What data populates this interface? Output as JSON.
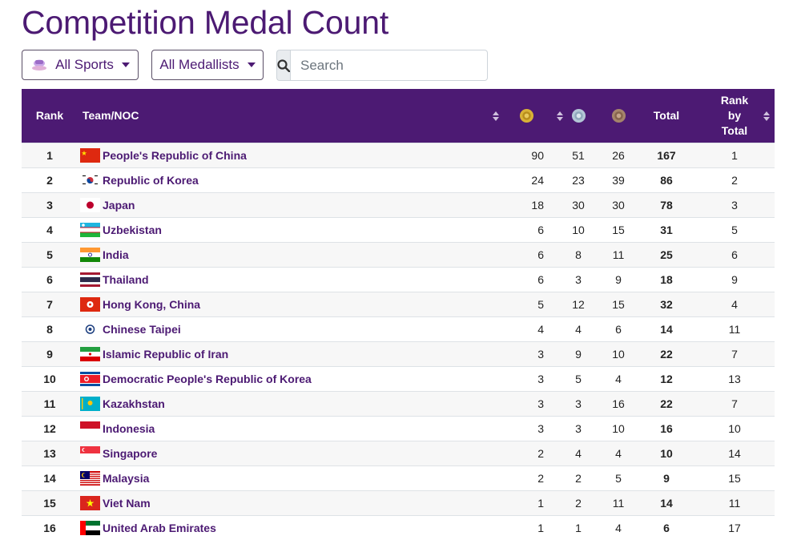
{
  "page": {
    "title": "Competition Medal Count"
  },
  "filters": {
    "sports_label": "All Sports",
    "medallists_label": "All Medallists"
  },
  "search": {
    "placeholder": "Search",
    "icon": "search-icon"
  },
  "table": {
    "columns": {
      "rank": "Rank",
      "team": "Team/NOC",
      "gold": "gold-medal-icon",
      "silver": "silver-medal-icon",
      "bronze": "bronze-medal-icon",
      "total": "Total",
      "rank_by_total": "Rank by Total"
    },
    "rows": [
      {
        "rank": "1",
        "team": "People's Republic of China",
        "flag": "CHN",
        "gold": "90",
        "silver": "51",
        "bronze": "26",
        "total": "167",
        "rank_by_total": "1"
      },
      {
        "rank": "2",
        "team": "Republic of Korea",
        "flag": "KOR",
        "gold": "24",
        "silver": "23",
        "bronze": "39",
        "total": "86",
        "rank_by_total": "2"
      },
      {
        "rank": "3",
        "team": "Japan",
        "flag": "JPN",
        "gold": "18",
        "silver": "30",
        "bronze": "30",
        "total": "78",
        "rank_by_total": "3"
      },
      {
        "rank": "4",
        "team": "Uzbekistan",
        "flag": "UZB",
        "gold": "6",
        "silver": "10",
        "bronze": "15",
        "total": "31",
        "rank_by_total": "5"
      },
      {
        "rank": "5",
        "team": "India",
        "flag": "IND",
        "gold": "6",
        "silver": "8",
        "bronze": "11",
        "total": "25",
        "rank_by_total": "6"
      },
      {
        "rank": "6",
        "team": "Thailand",
        "flag": "THA",
        "gold": "6",
        "silver": "3",
        "bronze": "9",
        "total": "18",
        "rank_by_total": "9"
      },
      {
        "rank": "7",
        "team": "Hong Kong, China",
        "flag": "HKG",
        "gold": "5",
        "silver": "12",
        "bronze": "15",
        "total": "32",
        "rank_by_total": "4"
      },
      {
        "rank": "8",
        "team": "Chinese Taipei",
        "flag": "TPE",
        "gold": "4",
        "silver": "4",
        "bronze": "6",
        "total": "14",
        "rank_by_total": "11"
      },
      {
        "rank": "9",
        "team": "Islamic Republic of Iran",
        "flag": "IRI",
        "gold": "3",
        "silver": "9",
        "bronze": "10",
        "total": "22",
        "rank_by_total": "7"
      },
      {
        "rank": "10",
        "team": "Democratic People's Republic of Korea",
        "flag": "PRK",
        "gold": "3",
        "silver": "5",
        "bronze": "4",
        "total": "12",
        "rank_by_total": "13"
      },
      {
        "rank": "11",
        "team": "Kazakhstan",
        "flag": "KAZ",
        "gold": "3",
        "silver": "3",
        "bronze": "16",
        "total": "22",
        "rank_by_total": "7"
      },
      {
        "rank": "12",
        "team": "Indonesia",
        "flag": "INA",
        "gold": "3",
        "silver": "3",
        "bronze": "10",
        "total": "16",
        "rank_by_total": "10"
      },
      {
        "rank": "13",
        "team": "Singapore",
        "flag": "SGP",
        "gold": "2",
        "silver": "4",
        "bronze": "4",
        "total": "10",
        "rank_by_total": "14"
      },
      {
        "rank": "14",
        "team": "Malaysia",
        "flag": "MAS",
        "gold": "2",
        "silver": "2",
        "bronze": "5",
        "total": "9",
        "rank_by_total": "15"
      },
      {
        "rank": "15",
        "team": "Viet Nam",
        "flag": "VIE",
        "gold": "1",
        "silver": "2",
        "bronze": "11",
        "total": "14",
        "rank_by_total": "11"
      },
      {
        "rank": "16",
        "team": "United Arab Emirates",
        "flag": "UAE",
        "gold": "1",
        "silver": "1",
        "bronze": "4",
        "total": "6",
        "rank_by_total": "17"
      }
    ]
  },
  "colors": {
    "brand": "#4c1a73",
    "gold": "#d9b236",
    "silver": "#b3c6d6",
    "bronze": "#a5846b"
  }
}
